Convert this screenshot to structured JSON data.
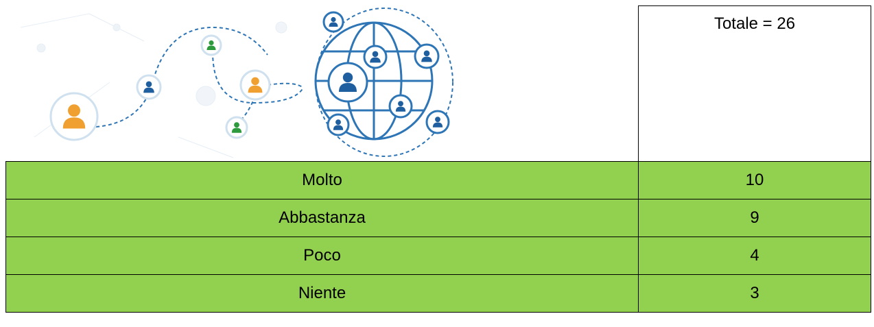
{
  "header": {
    "total": "Totale = 26"
  },
  "table": {
    "rows": [
      [
        "Molto",
        10
      ],
      [
        "Abbastanza",
        9
      ],
      [
        "Poco",
        4
      ],
      [
        "Niente",
        3
      ]
    ]
  }
}
